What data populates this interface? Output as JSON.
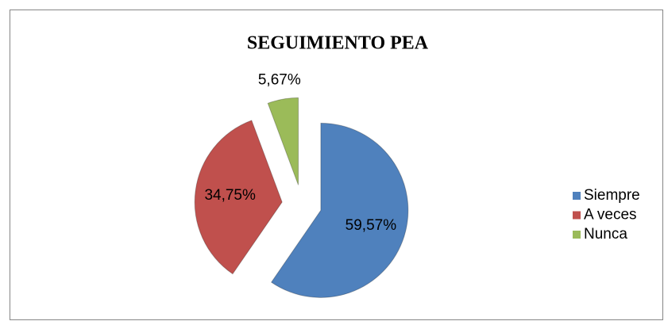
{
  "chart_data": {
    "type": "pie",
    "title": "SEGUIMIENTO PEA",
    "categories": [
      "Siempre",
      "A veces",
      "Nunca"
    ],
    "values": [
      59.57,
      34.75,
      5.67
    ],
    "value_labels": [
      "59,57%",
      "34,75%",
      "5,67%"
    ],
    "colors": [
      "#4f81bd",
      "#c0504d",
      "#9bbb59"
    ],
    "legend": "right"
  }
}
